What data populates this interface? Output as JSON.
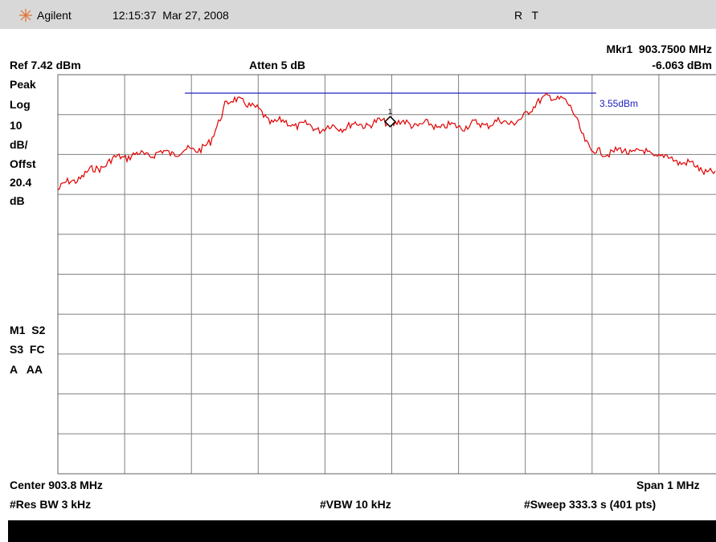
{
  "header": {
    "brand": "Agilent",
    "timestamp": "12:15:37  Mar 27, 2008",
    "status": "R   T"
  },
  "marker": {
    "label": "Mkr1  903.7500 MHz",
    "level": "-6.063 dBm",
    "id": "1"
  },
  "settings": {
    "ref": "Ref 7.42 dBm",
    "atten": "Atten 5 dB"
  },
  "left_panel": {
    "scale": [
      "Peak",
      "Log",
      "10",
      "dB/",
      "Offst",
      "20.4",
      "dB"
    ],
    "flags": [
      "M1  S2",
      "S3  FC",
      "A   AA"
    ]
  },
  "limit_line": {
    "label": "3.55dBm"
  },
  "footer": {
    "center": "Center 903.8 MHz",
    "span": "Span 1 MHz",
    "rbw": "#Res BW 3 kHz",
    "vbw": "#VBW 10 kHz",
    "sweep": "#Sweep 333.3 s (401 pts)"
  }
}
